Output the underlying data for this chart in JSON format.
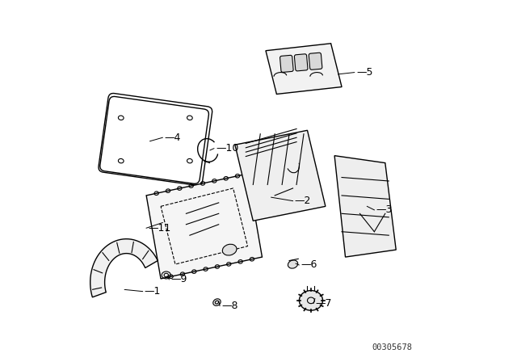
{
  "background_color": "#ffffff",
  "line_color": "#000000",
  "label_color": "#000000",
  "diagram_code": "00305678",
  "figsize": [
    6.4,
    4.48
  ],
  "dpi": 100
}
